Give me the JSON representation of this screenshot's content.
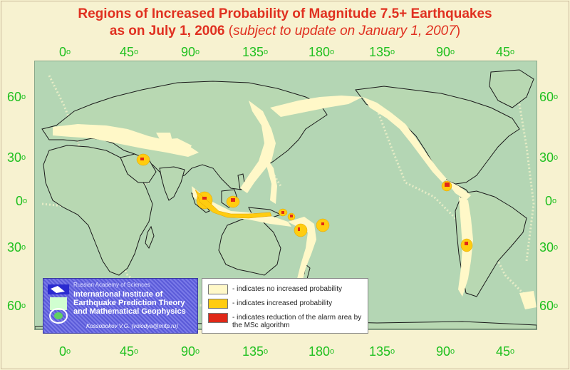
{
  "title": {
    "line1": "Regions of Increased Probability of Magnitude 7.5+ Earthquakes",
    "line2_bold": "as on July 1, 2006",
    "line2_open": " (",
    "line2_italic": "subject to update on January 1, 2007",
    "line2_close": ")"
  },
  "longitude_labels": [
    "0",
    "45",
    "90",
    "135",
    "180",
    "135",
    "90",
    "45"
  ],
  "latitude_labels": [
    "60",
    "30",
    "0",
    "30",
    "60"
  ],
  "degree_symbol": "o",
  "colors": {
    "title": "#e03020",
    "degree_labels": "#20c020",
    "ocean": "#b4d6b4",
    "no_increase": "#fff8c8",
    "increased": "#ffcc10",
    "reduction": "#e02818",
    "coast": "#1a1a1a",
    "page_background": "#f7f2d0"
  },
  "institute": {
    "academy": "Russian Academy of Sciences",
    "name": "International Institute of Earthquake Prediction Theory and Mathematical Geophysics",
    "author": "Kossobokov V.G. (volodya@mitp.ru)"
  },
  "legend": {
    "items": [
      {
        "label": "- indicates no increased probability",
        "color": "#fff8c8"
      },
      {
        "label": "- indicates increased probability",
        "color": "#ffcc10"
      },
      {
        "label": "- indicates reduction of the alarm area by the MSc algorithm",
        "color": "#e02818"
      }
    ]
  }
}
